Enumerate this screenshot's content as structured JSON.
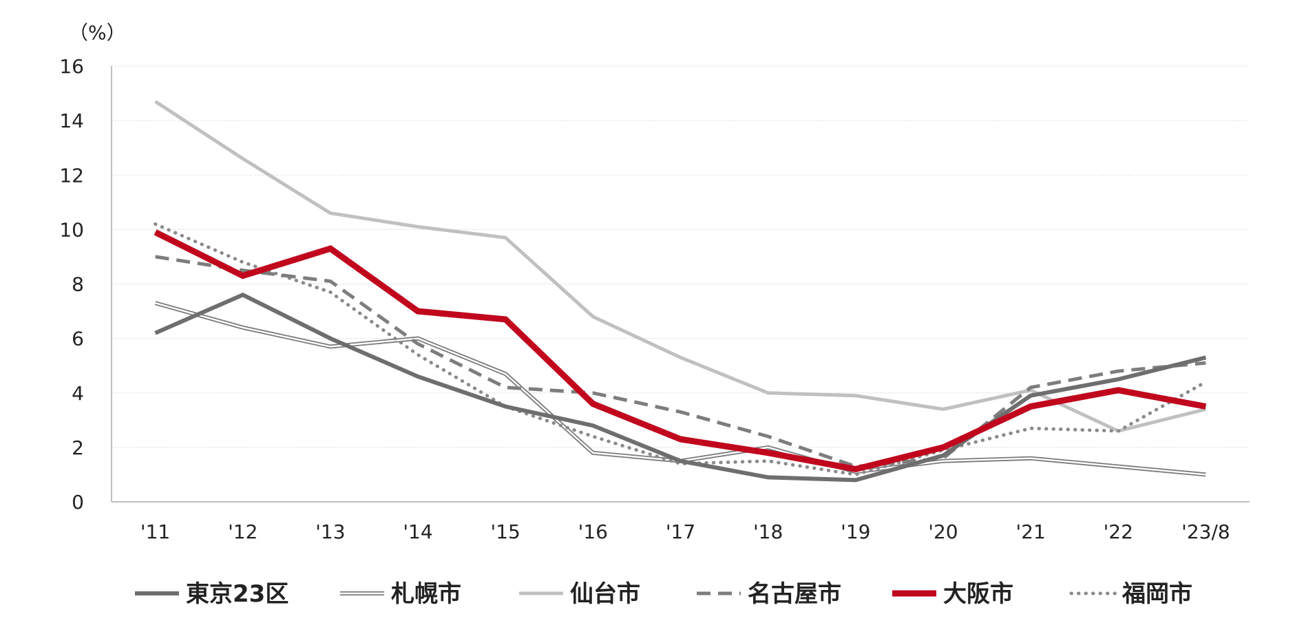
{
  "chart_data": {
    "type": "line",
    "unit_label": "（%）",
    "categories": [
      "'11",
      "'12",
      "'13",
      "'14",
      "'15",
      "'16",
      "'17",
      "'18",
      "'19",
      "'20",
      "'21",
      "'22",
      "'23/8"
    ],
    "ylim": [
      0,
      16
    ],
    "yticks": [
      0,
      2,
      4,
      6,
      8,
      10,
      12,
      14,
      16
    ],
    "grid": true,
    "legend_position": "bottom",
    "series": [
      {
        "name": "東京23区",
        "color": "#6e6e6e",
        "style": "solid-thick",
        "values": [
          6.2,
          7.6,
          6.0,
          4.6,
          3.5,
          2.8,
          1.5,
          0.9,
          0.8,
          1.7,
          3.9,
          4.5,
          5.3
        ]
      },
      {
        "name": "札幌市",
        "color": "#7a7a7a",
        "style": "double",
        "values": [
          7.3,
          6.4,
          5.7,
          6.0,
          4.7,
          1.8,
          1.5,
          2.0,
          1.1,
          1.5,
          1.6,
          1.3,
          1.0
        ]
      },
      {
        "name": "仙台市",
        "color": "#c0c0c0",
        "style": "solid",
        "values": [
          14.7,
          12.6,
          10.6,
          10.1,
          9.7,
          6.8,
          5.3,
          4.0,
          3.9,
          3.4,
          4.1,
          2.6,
          3.4
        ]
      },
      {
        "name": "名古屋市",
        "color": "#7d7d7d",
        "style": "dashed",
        "values": [
          9.0,
          8.5,
          8.1,
          5.8,
          4.2,
          4.0,
          3.3,
          2.4,
          1.3,
          1.6,
          4.2,
          4.8,
          5.1
        ]
      },
      {
        "name": "大阪市",
        "color": "#c0071d",
        "style": "solid-bold",
        "values": [
          9.9,
          8.3,
          9.3,
          7.0,
          6.7,
          3.6,
          2.3,
          1.8,
          1.2,
          2.0,
          3.5,
          4.1,
          3.5
        ]
      },
      {
        "name": "福岡市",
        "color": "#8a8a8a",
        "style": "dotted",
        "values": [
          10.2,
          8.8,
          7.7,
          5.4,
          3.5,
          2.4,
          1.4,
          1.5,
          1.0,
          1.9,
          2.7,
          2.6,
          4.4
        ]
      }
    ]
  }
}
